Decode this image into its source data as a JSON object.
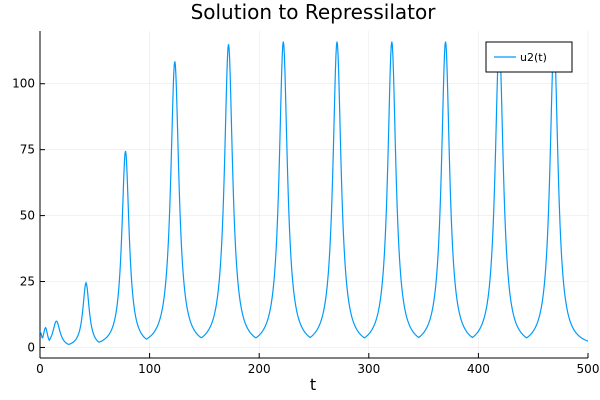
{
  "chart_data": {
    "type": "line",
    "title": "Solution to Repressilator",
    "xlabel": "t",
    "ylabel": "",
    "xlim": [
      0,
      500
    ],
    "ylim": [
      -4,
      120
    ],
    "xticks": [
      0,
      100,
      200,
      300,
      400,
      500
    ],
    "yticks": [
      0,
      25,
      50,
      75,
      100
    ],
    "grid": true,
    "legend_position": "top-right",
    "series": [
      {
        "name": "u2(t)",
        "color": "#009AFA",
        "peaks": [
          {
            "t": 0,
            "v": 6,
            "w": 2.5
          },
          {
            "t": 5,
            "v": 7.5,
            "w": 2.5
          },
          {
            "t": 15,
            "v": 10,
            "w": 4
          },
          {
            "t": 42,
            "v": 24.5,
            "w": 3.5
          },
          {
            "t": 78,
            "v": 74.5,
            "w": 4
          },
          {
            "t": 123,
            "v": 108.5,
            "w": 4.5
          },
          {
            "t": 172,
            "v": 115,
            "w": 4.5
          },
          {
            "t": 222,
            "v": 116,
            "w": 4.5
          },
          {
            "t": 271,
            "v": 116,
            "w": 4.5
          },
          {
            "t": 321,
            "v": 116,
            "w": 4.5
          },
          {
            "t": 370,
            "v": 116,
            "w": 4.5
          },
          {
            "t": 419,
            "v": 116,
            "w": 4.5
          },
          {
            "t": 469,
            "v": 116,
            "w": 4.5
          }
        ],
        "baseline": 0.3
      }
    ]
  }
}
